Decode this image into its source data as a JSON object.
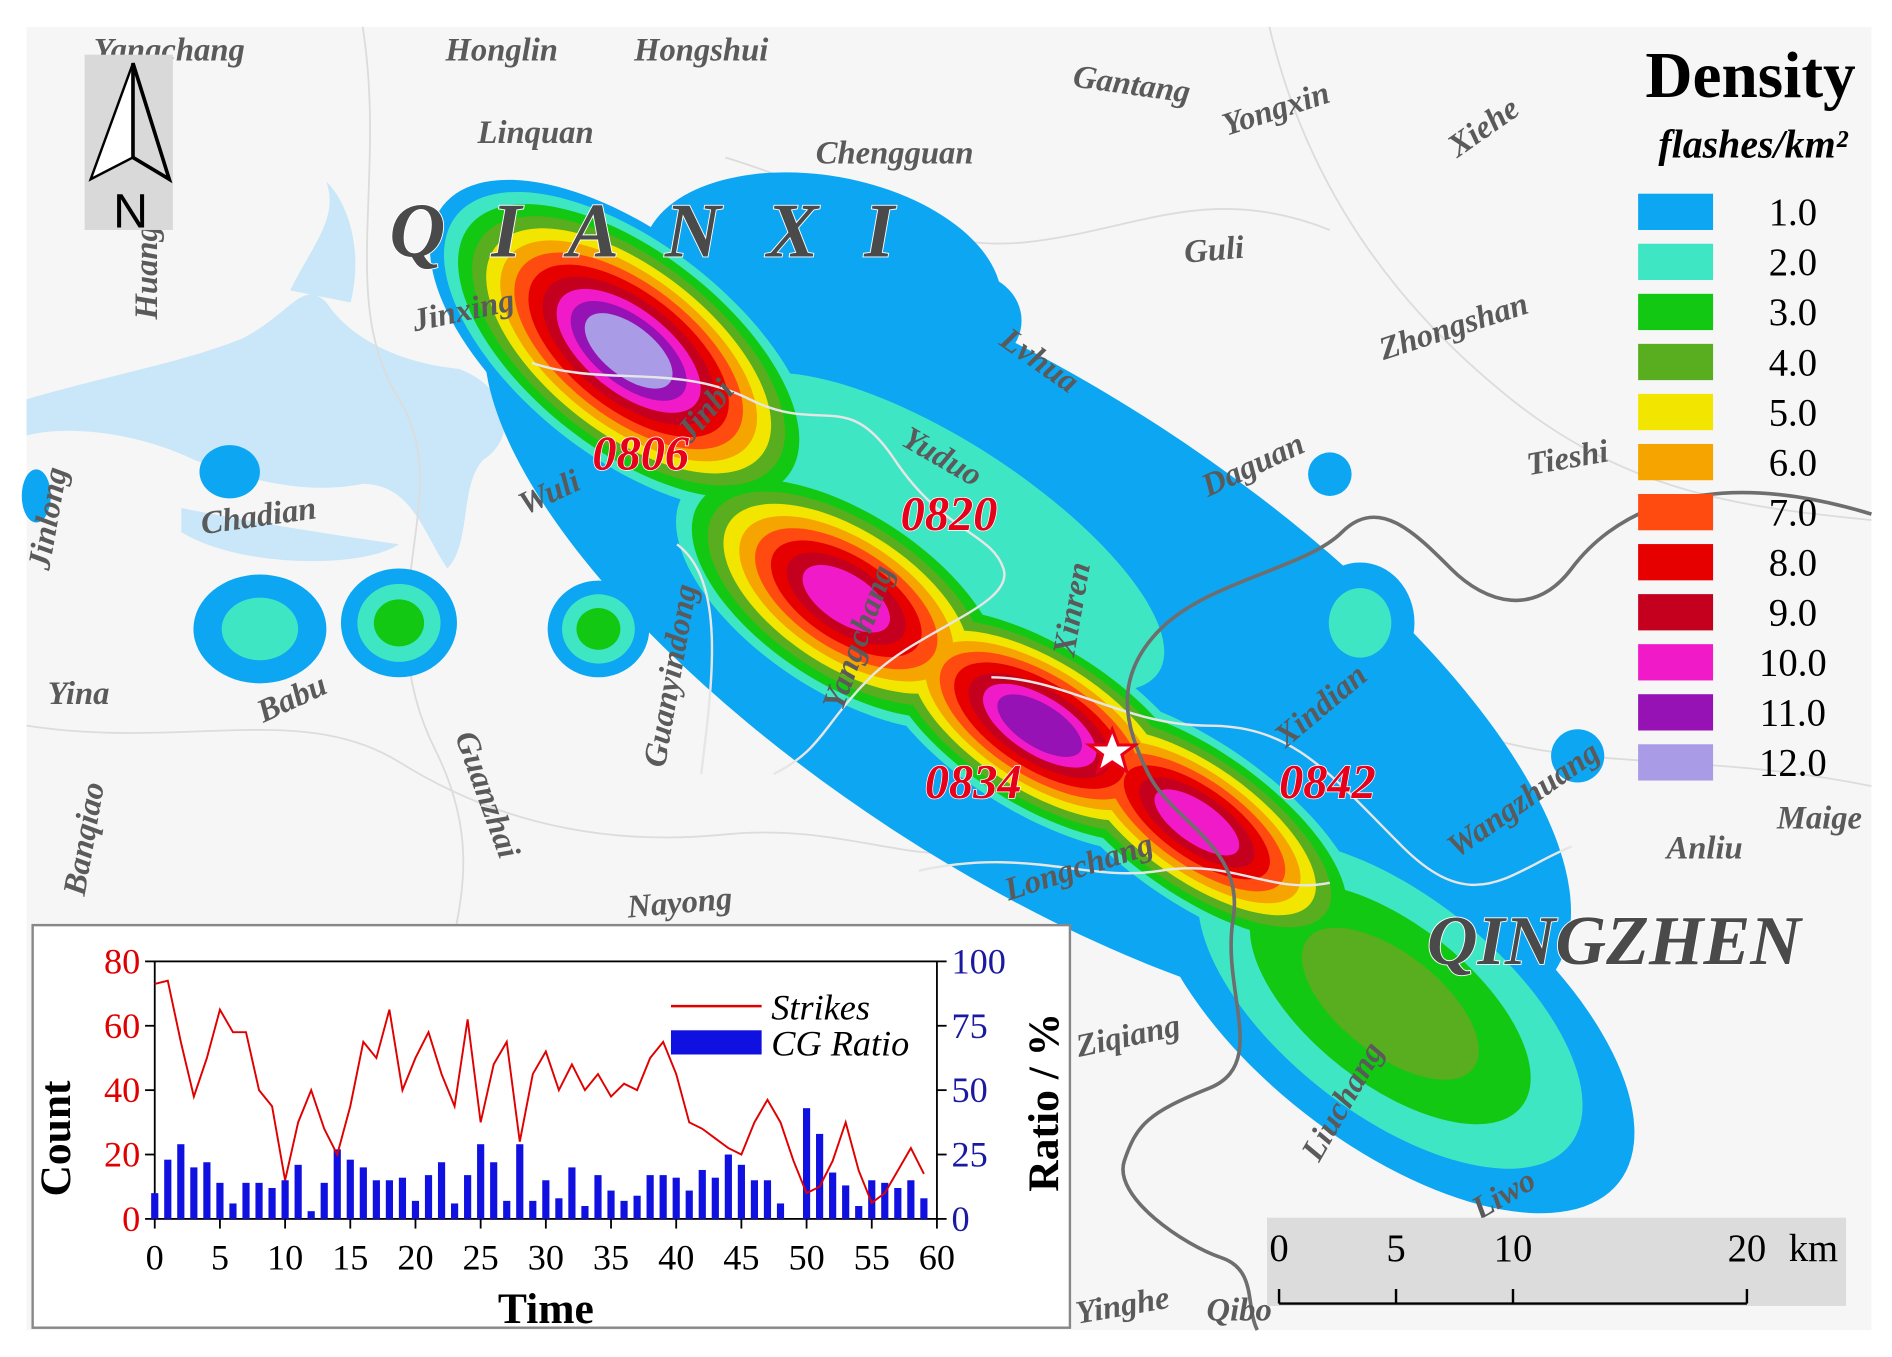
{
  "map": {
    "regions": [
      "QIANXI",
      "QINGZHEN"
    ],
    "places": [
      "Yangchang",
      "Honglin",
      "Hongshui",
      "Gantang",
      "Yongxin",
      "Xiehe",
      "Linquan",
      "Chengguan",
      "Guli",
      "Jinxing",
      "Lvhua",
      "Zhongshan",
      "Jinbi",
      "Yuduo",
      "Daguan",
      "Tieshi",
      "Chadian",
      "Wuli",
      "Jinlong",
      "Xinren",
      "Yangchang",
      "Guanyindong",
      "Babu",
      "Yina",
      "Guanzhai",
      "Xindian",
      "Banqiao",
      "Longchang",
      "Wangzhuang",
      "Maige",
      "Anliu",
      "Nayong",
      "Ziqiang",
      "Liuchang",
      "Liwo",
      "Yinghe",
      "Qibo",
      "Huang"
    ],
    "events": [
      "0806",
      "0820",
      "0834",
      "0842"
    ],
    "north": "N",
    "legend": {
      "title": "Density",
      "unit": "flashes/km²",
      "classes": [
        {
          "value": 1,
          "label": "1.0",
          "color": "#0ca6f2"
        },
        {
          "value": 2,
          "label": "2.0",
          "color": "#3fe6c4"
        },
        {
          "value": 3,
          "label": "3.0",
          "color": "#12c812"
        },
        {
          "value": 4,
          "label": "4.0",
          "color": "#58ae1e"
        },
        {
          "value": 5,
          "label": "5.0",
          "color": "#f2e600"
        },
        {
          "value": 6,
          "label": "6.0",
          "color": "#f5a400"
        },
        {
          "value": 7,
          "label": "7.0",
          "color": "#ff4a10"
        },
        {
          "value": 8,
          "label": "8.0",
          "color": "#e60000"
        },
        {
          "value": 9,
          "label": "9.0",
          "color": "#c4001e"
        },
        {
          "value": 10,
          "label": "10.0",
          "color": "#f01ac8"
        },
        {
          "value": 11,
          "label": "11.0",
          "color": "#9612b4"
        },
        {
          "value": 12,
          "label": "12.0",
          "color": "#a99be6"
        }
      ]
    },
    "scale": {
      "ticks": [
        0,
        5,
        10,
        20
      ],
      "unit": "km"
    }
  },
  "chart_data": {
    "type": "combo",
    "xlabel": "Time",
    "ylabel": "Count",
    "y2label": "Ratio / %",
    "x": [
      0,
      1,
      2,
      3,
      4,
      5,
      6,
      7,
      8,
      9,
      10,
      11,
      12,
      13,
      14,
      15,
      16,
      17,
      18,
      19,
      20,
      21,
      22,
      23,
      24,
      25,
      26,
      27,
      28,
      29,
      30,
      31,
      32,
      33,
      34,
      35,
      36,
      37,
      38,
      39,
      40,
      41,
      42,
      43,
      44,
      45,
      46,
      47,
      48,
      49,
      50,
      51,
      52,
      53,
      54,
      55,
      56,
      57,
      58,
      59
    ],
    "xlim": [
      0,
      60
    ],
    "xticks": [
      0,
      5,
      10,
      15,
      20,
      25,
      30,
      35,
      40,
      45,
      50,
      55,
      60
    ],
    "ylim": [
      0,
      80
    ],
    "yticks": [
      0,
      20,
      40,
      60,
      80
    ],
    "y2lim": [
      0,
      100
    ],
    "y2ticks": [
      0,
      25,
      50,
      75,
      100
    ],
    "series": [
      {
        "name": "Strikes",
        "type": "line",
        "color": "#e00000",
        "values": [
          73,
          74,
          55,
          38,
          50,
          65,
          58,
          58,
          40,
          35,
          12,
          30,
          40,
          28,
          20,
          35,
          55,
          50,
          65,
          40,
          50,
          58,
          45,
          35,
          62,
          30,
          48,
          55,
          24,
          45,
          52,
          40,
          48,
          40,
          45,
          38,
          42,
          40,
          50,
          55,
          45,
          30,
          28,
          25,
          22,
          20,
          30,
          37,
          30,
          18,
          8,
          10,
          18,
          30,
          15,
          5,
          8,
          15,
          22,
          14
        ]
      },
      {
        "name": "CG Ratio",
        "type": "bar",
        "axis": "y2",
        "color": "#1010e0",
        "values": [
          10,
          23,
          29,
          20,
          22,
          14,
          6,
          14,
          14,
          12,
          15,
          21,
          3,
          14,
          27,
          23,
          20,
          15,
          15,
          16,
          7,
          17,
          22,
          6,
          17,
          29,
          22,
          7,
          29,
          7,
          15,
          8,
          20,
          5,
          17,
          11,
          7,
          9,
          17,
          17,
          16,
          11,
          19,
          16,
          25,
          21,
          15,
          15,
          6,
          0,
          43,
          33,
          18,
          13,
          5,
          15,
          14,
          12,
          15,
          8
        ]
      }
    ]
  }
}
